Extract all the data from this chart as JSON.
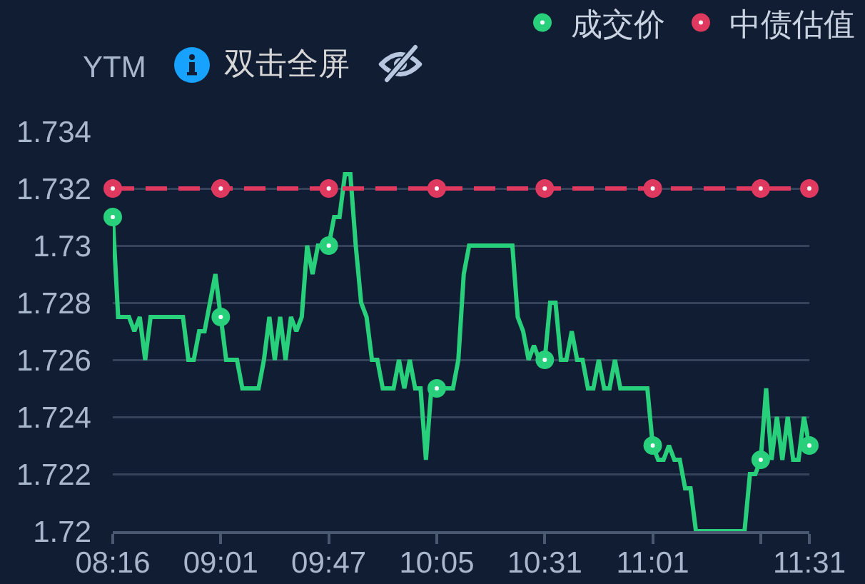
{
  "chart_data": {
    "type": "line",
    "ylabel": "YTM",
    "annotations": [
      "双击全屏"
    ],
    "categories": [
      "08:16",
      null,
      null,
      null,
      null,
      null,
      null,
      null,
      null,
      null,
      null,
      null,
      null,
      null,
      null,
      null,
      null,
      null,
      null,
      null,
      "09:01",
      null,
      null,
      null,
      null,
      null,
      null,
      null,
      null,
      null,
      null,
      null,
      null,
      null,
      null,
      null,
      null,
      null,
      null,
      null,
      "09:47",
      null,
      null,
      null,
      null,
      null,
      null,
      null,
      null,
      null,
      null,
      null,
      null,
      null,
      null,
      null,
      null,
      null,
      null,
      null,
      "10:05",
      null,
      null,
      null,
      null,
      null,
      null,
      null,
      null,
      null,
      null,
      null,
      null,
      null,
      null,
      null,
      null,
      null,
      null,
      null,
      "10:31",
      null,
      null,
      null,
      null,
      null,
      null,
      null,
      null,
      null,
      null,
      null,
      null,
      null,
      null,
      null,
      null,
      null,
      null,
      null,
      "11:01",
      null,
      null,
      null,
      null,
      null,
      null,
      null,
      null,
      null,
      null,
      null,
      null,
      null,
      null,
      null,
      null,
      null,
      null,
      null,
      null,
      null,
      null,
      null,
      null,
      null,
      null,
      null,
      null,
      "11:31"
    ],
    "series": [
      {
        "name": "成交价",
        "color": "#29d07c",
        "line_style": "solid",
        "values": [
          1.731,
          1.7275,
          1.7275,
          1.7275,
          1.727,
          1.7275,
          1.726,
          1.7275,
          1.7275,
          1.7275,
          1.7275,
          1.7275,
          1.7275,
          1.7275,
          1.726,
          1.726,
          1.727,
          1.727,
          1.728,
          1.729,
          1.7275,
          1.726,
          1.726,
          1.726,
          1.725,
          1.725,
          1.725,
          1.725,
          1.726,
          1.7275,
          1.726,
          1.7275,
          1.726,
          1.7275,
          1.727,
          1.7275,
          1.73,
          1.729,
          1.73,
          1.73,
          1.73,
          1.731,
          1.731,
          1.7325,
          1.7325,
          1.73,
          1.728,
          1.7275,
          1.726,
          1.726,
          1.725,
          1.725,
          1.725,
          1.726,
          1.725,
          1.726,
          1.725,
          1.725,
          1.7225,
          1.725,
          1.725,
          1.725,
          1.725,
          1.725,
          1.726,
          1.729,
          1.73,
          1.73,
          1.73,
          1.73,
          1.73,
          1.73,
          1.73,
          1.73,
          1.73,
          1.7275,
          1.727,
          1.726,
          1.7265,
          1.726,
          1.726,
          1.728,
          1.728,
          1.726,
          1.726,
          1.727,
          1.726,
          1.726,
          1.725,
          1.725,
          1.726,
          1.725,
          1.725,
          1.726,
          1.725,
          1.725,
          1.725,
          1.725,
          1.725,
          1.725,
          1.723,
          1.7225,
          1.7225,
          1.723,
          1.7225,
          1.7225,
          1.7215,
          1.7215,
          1.72,
          1.72,
          1.72,
          1.72,
          1.72,
          1.72,
          1.72,
          1.72,
          1.72,
          1.72,
          1.722,
          1.722,
          1.7225,
          1.725,
          1.7225,
          1.724,
          1.7225,
          1.724,
          1.7225,
          1.7225,
          1.724,
          1.723
        ]
      },
      {
        "name": "中债估值",
        "color": "#e0395f",
        "line_style": "dashed",
        "values": [
          1.732,
          1.732,
          1.732,
          1.732,
          1.732,
          1.732,
          1.732,
          1.732,
          1.732,
          1.732,
          1.732,
          1.732,
          1.732,
          1.732,
          1.732,
          1.732,
          1.732,
          1.732,
          1.732,
          1.732,
          1.732,
          1.732,
          1.732,
          1.732,
          1.732,
          1.732,
          1.732,
          1.732,
          1.732,
          1.732,
          1.732,
          1.732,
          1.732,
          1.732,
          1.732,
          1.732,
          1.732,
          1.732,
          1.732,
          1.732,
          1.732,
          1.732,
          1.732,
          1.732,
          1.732,
          1.732,
          1.732,
          1.732,
          1.732,
          1.732,
          1.732,
          1.732,
          1.732,
          1.732,
          1.732,
          1.732,
          1.732,
          1.732,
          1.732,
          1.732,
          1.732,
          1.732,
          1.732,
          1.732,
          1.732,
          1.732,
          1.732,
          1.732,
          1.732,
          1.732,
          1.732,
          1.732,
          1.732,
          1.732,
          1.732,
          1.732,
          1.732,
          1.732,
          1.732,
          1.732,
          1.732,
          1.732,
          1.732,
          1.732,
          1.732,
          1.732,
          1.732,
          1.732,
          1.732,
          1.732,
          1.732,
          1.732,
          1.732,
          1.732,
          1.732,
          1.732,
          1.732,
          1.732,
          1.732,
          1.732,
          1.732,
          1.732,
          1.732,
          1.732,
          1.732,
          1.732,
          1.732,
          1.732,
          1.732,
          1.732,
          1.732,
          1.732,
          1.732,
          1.732,
          1.732,
          1.732,
          1.732,
          1.732,
          1.732,
          1.732,
          1.732,
          1.732,
          1.732,
          1.732,
          1.732,
          1.732,
          1.732,
          1.732,
          1.732,
          1.732
        ]
      }
    ],
    "ylim": [
      1.72,
      1.734
    ],
    "yticks": [
      1.72,
      1.722,
      1.724,
      1.726,
      1.728,
      1.73,
      1.732,
      1.734
    ],
    "grid": "y",
    "legend": "top right"
  }
}
